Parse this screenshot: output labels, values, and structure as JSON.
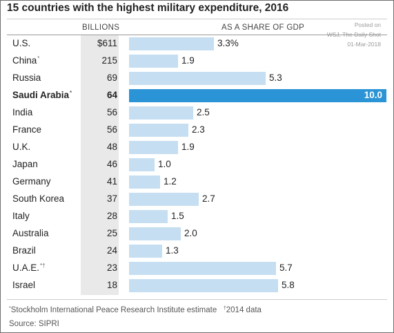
{
  "header": {
    "title": "15 countries with the highest military expenditure, 2016",
    "col_billions": "BILLIONS",
    "col_share": "AS A SHARE OF GDP"
  },
  "note": {
    "line1": "Posted on",
    "line2": "WSJ, The Daily Shot",
    "line3": "01-Mar-2018"
  },
  "footer": {
    "sipri_mark": "*",
    "sipri_text": "Stockholm International Peace Research Institute estimate",
    "dagger_mark": "†",
    "dagger_text": "2014 data",
    "source": "Source: SIPRI"
  },
  "colors": {
    "bar": "#c6def1",
    "highlight_bar": "#2b94d6",
    "band": "#e9e9e9"
  },
  "chart_data": {
    "type": "bar",
    "title": "15 countries with the highest military expenditure, 2016",
    "xlim": [
      0,
      10
    ],
    "highlight": "Saudi Arabia",
    "categories": [
      "U.S.",
      "China",
      "Russia",
      "Saudi Arabia",
      "India",
      "France",
      "U.K.",
      "Japan",
      "Germany",
      "South Korea",
      "Italy",
      "Australia",
      "Brazil",
      "U.A.E.",
      "Israel"
    ],
    "marks": [
      "",
      "*",
      "",
      "*",
      "",
      "",
      "",
      "",
      "",
      "",
      "",
      "",
      "",
      "*†",
      ""
    ],
    "billions_labels": [
      "$611",
      "215",
      "69",
      "64",
      "56",
      "56",
      "48",
      "46",
      "41",
      "37",
      "28",
      "25",
      "24",
      "23",
      "18"
    ],
    "series": [
      {
        "values": [
          3.3,
          1.9,
          5.3,
          10.0,
          2.5,
          2.3,
          1.9,
          1.0,
          1.2,
          2.7,
          1.5,
          2.0,
          1.3,
          5.7,
          5.8
        ]
      }
    ],
    "share_labels": [
      "3.3%",
      "1.9",
      "5.3",
      "10.0",
      "2.5",
      "2.3",
      "1.9",
      "1.0",
      "1.2",
      "2.7",
      "1.5",
      "2.0",
      "1.3",
      "5.7",
      "5.8"
    ]
  }
}
